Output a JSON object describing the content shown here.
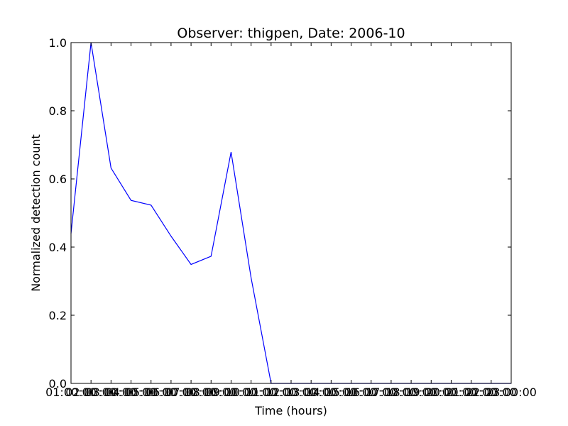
{
  "chart_data": {
    "type": "line",
    "title": "Observer: thigpen, Date: 2006-10",
    "xlabel": "Time (hours)",
    "ylabel": "Normalized detection count",
    "xlim": [
      1,
      23
    ],
    "ylim": [
      0,
      1
    ],
    "x_tick_labels": [
      "01:00:00",
      "02:00:00",
      "03:00:00",
      "04:00:00",
      "05:00:00",
      "06:00:00",
      "07:00:00",
      "08:00:00",
      "09:00:00",
      "10:00:00",
      "11:00:00",
      "12:00:00",
      "13:00:00",
      "14:00:00",
      "15:00:00",
      "16:00:00",
      "17:00:00",
      "18:00:00",
      "19:00:00",
      "20:00:00",
      "21:00:00",
      "22:00:00",
      "23:00:00"
    ],
    "y_tick_labels": [
      "0.0",
      "0.2",
      "0.4",
      "0.6",
      "0.8",
      "1.0"
    ],
    "grid": false,
    "legend": "none",
    "series": [
      {
        "color": "#0000ff",
        "x": [
          1,
          2,
          3,
          4,
          5,
          6,
          7,
          8,
          9,
          10,
          11,
          12,
          13,
          14,
          15,
          16,
          17,
          18,
          19,
          20,
          21,
          22,
          23
        ],
        "y": [
          0.44,
          1.0,
          0.632,
          0.537,
          0.523,
          0.432,
          0.349,
          0.373,
          0.679,
          0.31,
          0.0,
          0.0,
          0.0,
          0.0,
          0.0,
          0.0,
          0.0,
          0.0,
          0.0,
          0.0,
          0.0,
          0.0,
          0.0
        ]
      }
    ]
  }
}
